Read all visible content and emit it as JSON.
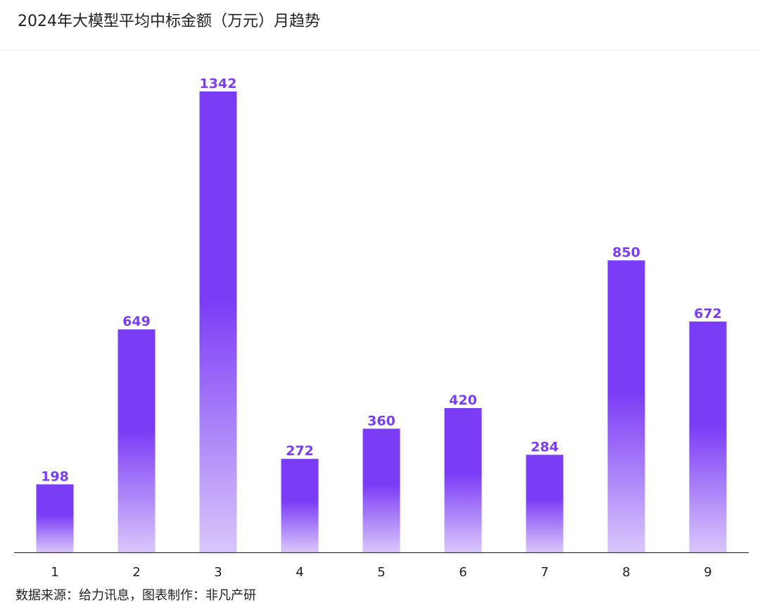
{
  "title": "2024年大模型平均中标金额（万元）月趋势",
  "source_note": "数据来源：给力讯息，图表制作：非凡产研",
  "colors": {
    "bar_top": "#7b3cf5",
    "bar_bottom": "#d9c7fb",
    "label": "#7b3cf5",
    "axis": "#333333"
  },
  "chart_data": {
    "type": "bar",
    "title": "2024年大模型平均中标金额（万元）月趋势",
    "categories": [
      "1",
      "2",
      "3",
      "4",
      "5",
      "6",
      "7",
      "8",
      "9"
    ],
    "values": [
      198,
      649,
      1342,
      272,
      360,
      420,
      284,
      850,
      672
    ],
    "xlabel": "",
    "ylabel": "",
    "ylim": [
      0,
      1342
    ],
    "grid": false,
    "legend": "none",
    "data_labels": true
  }
}
